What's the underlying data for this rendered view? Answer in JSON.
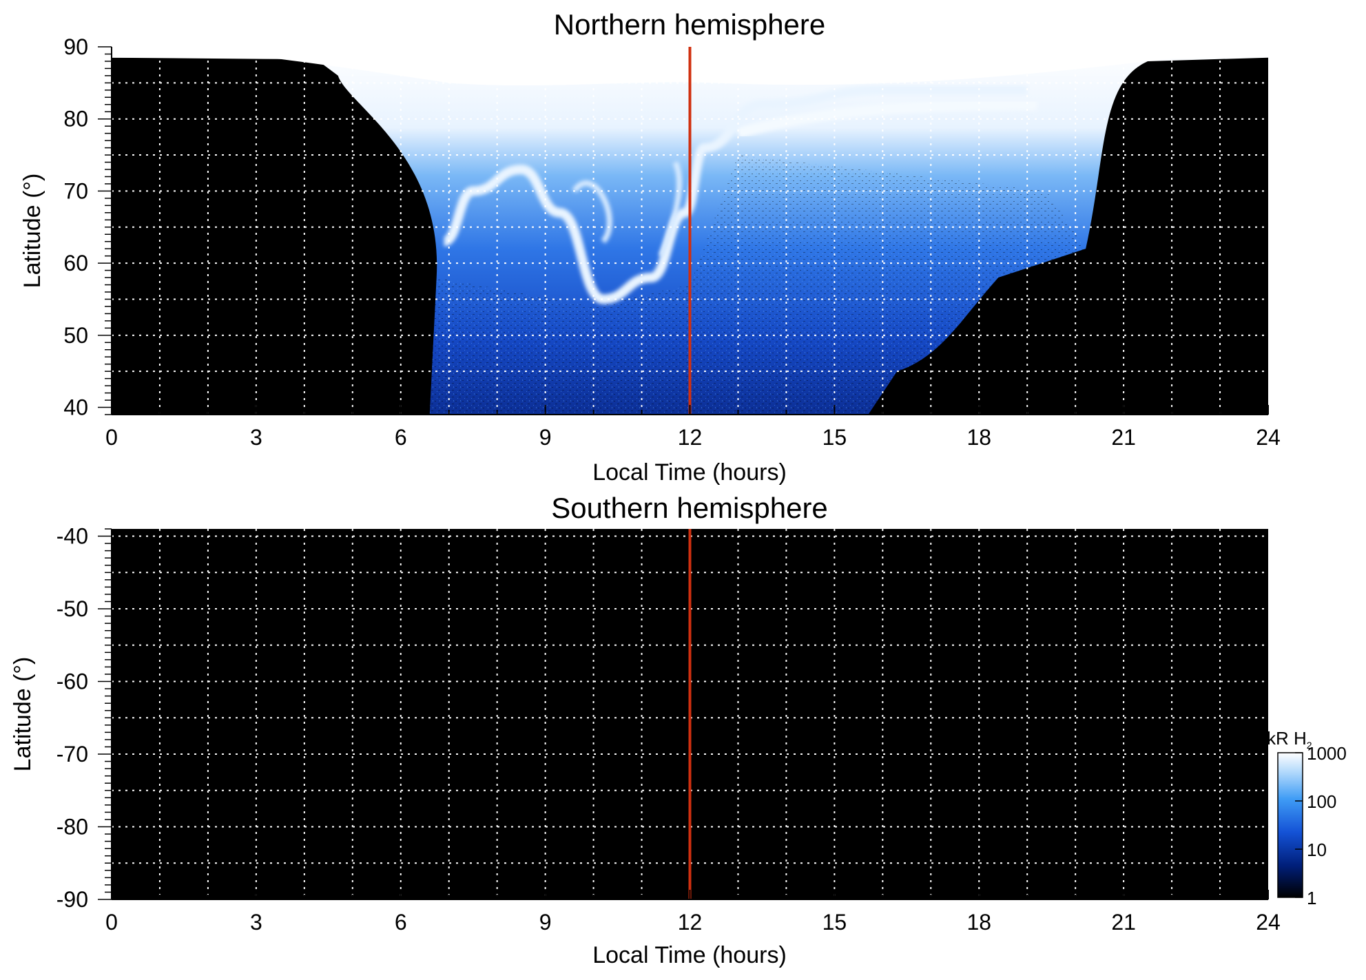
{
  "chart_data": [
    {
      "type": "heatmap",
      "title": "Northern hemisphere",
      "xlabel": "Local Time (hours)",
      "ylabel": "Latitude (°)",
      "xlim": [
        0,
        24
      ],
      "ylim": [
        39,
        90
      ],
      "xticks": [
        0,
        3,
        6,
        9,
        12,
        15,
        18,
        21,
        24
      ],
      "yticks": [
        40,
        50,
        60,
        70,
        80,
        90
      ],
      "grid": true,
      "noon_marker_x": 12,
      "noon_marker_color": "#d03010",
      "emission_region": {
        "x_range": [
          6.6,
          20.5
        ],
        "brightest_band_latitude_range": [
          78,
          90
        ],
        "description_colors": [
          "#000000",
          "#1040c0",
          "#3f8df0",
          "#ffffff"
        ]
      },
      "main_oval": [
        {
          "lt": 6.9,
          "lat": 63
        },
        {
          "lt": 7.5,
          "lat": 70
        },
        {
          "lt": 8.5,
          "lat": 73
        },
        {
          "lt": 9.3,
          "lat": 67
        },
        {
          "lt": 10.2,
          "lat": 55
        },
        {
          "lt": 11.2,
          "lat": 58
        },
        {
          "lt": 11.9,
          "lat": 67
        },
        {
          "lt": 12.3,
          "lat": 76
        },
        {
          "lt": 13.5,
          "lat": 82
        },
        {
          "lt": 16,
          "lat": 84
        },
        {
          "lt": 19,
          "lat": 84
        }
      ]
    },
    {
      "type": "heatmap",
      "title": "Southern hemisphere",
      "xlabel": "Local Time (hours)",
      "ylabel": "Latitude (°)",
      "xlim": [
        0,
        24
      ],
      "ylim": [
        -90,
        -39
      ],
      "xticks": [
        0,
        3,
        6,
        9,
        12,
        15,
        18,
        21,
        24
      ],
      "yticks": [
        -40,
        -50,
        -60,
        -70,
        -80,
        -90
      ],
      "grid": true,
      "noon_marker_x": 12,
      "noon_marker_color": "#d03010"
    }
  ],
  "colorbar": {
    "label_main": "kR H",
    "label_sub": "2",
    "scale": "log",
    "ticks": [
      "1000",
      "100",
      "10",
      "1"
    ],
    "tick_values": [
      1000,
      100,
      10,
      1
    ],
    "range": [
      1,
      1000
    ],
    "colors": [
      "#000000",
      "#001f7a",
      "#1452d6",
      "#3f9cf5",
      "#a8d4fb",
      "#ffffff"
    ]
  }
}
